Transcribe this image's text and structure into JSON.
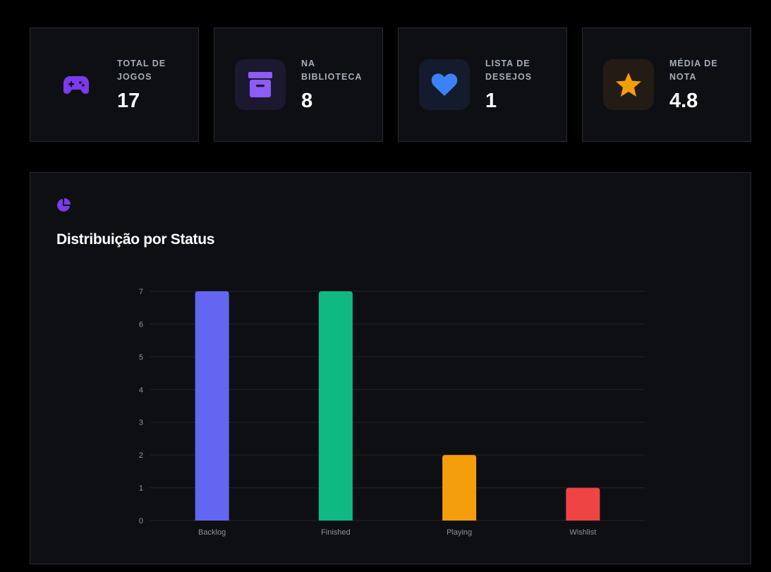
{
  "stats": [
    {
      "label": "TOTAL DE JOGOS",
      "value": "17",
      "icon": "gamepad-icon",
      "color": "#7c3aed",
      "bg": "#0e0f13"
    },
    {
      "label": "NA BIBLIOTECA",
      "value": "8",
      "icon": "archive-icon",
      "color": "#8b5cf6",
      "bg": "#1c1830"
    },
    {
      "label": "LISTA DE DESEJOS",
      "value": "1",
      "icon": "heart-icon",
      "color": "#3b82f6",
      "bg": "#141b2c"
    },
    {
      "label": "MÉDIA DE NOTA",
      "value": "4.8",
      "icon": "star-icon",
      "color": "#f59e0b",
      "bg": "#231c14"
    }
  ],
  "chart_card": {
    "title": "Distribuição por Status",
    "icon": "pie-chart-icon",
    "icon_color": "#7c3aed"
  },
  "chart_data": {
    "type": "bar",
    "categories": [
      "Backlog",
      "Finished",
      "Playing",
      "Wishlist"
    ],
    "values": [
      7,
      7,
      2,
      1
    ],
    "colors": [
      "#6366f1",
      "#10b981",
      "#f59e0b",
      "#ef4444"
    ],
    "ylim": [
      0,
      7
    ],
    "yticks": [
      0,
      1,
      2,
      3,
      4,
      5,
      6,
      7
    ],
    "grid": true,
    "legend": "none"
  }
}
